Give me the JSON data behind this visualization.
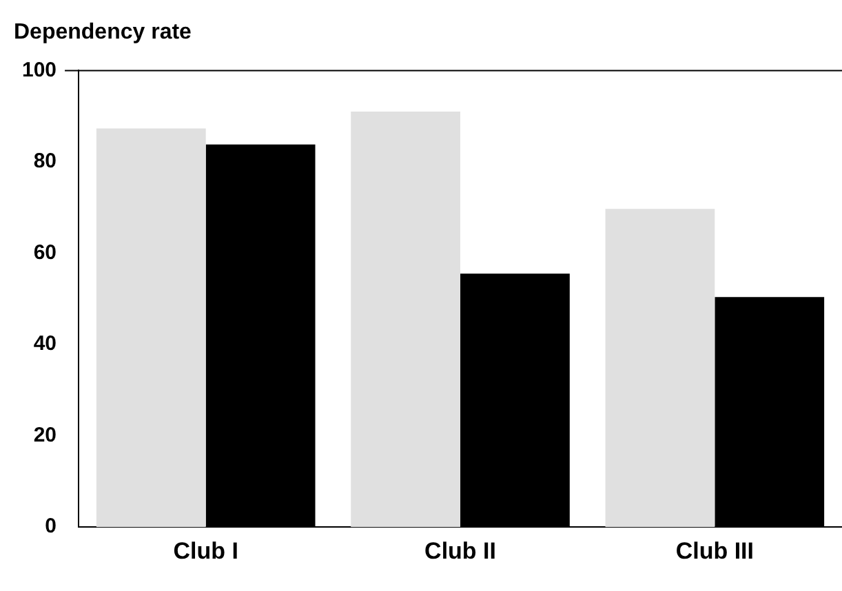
{
  "chart_data": {
    "type": "bar",
    "title": "Dependency rate",
    "categories": [
      "Club I",
      "Club II",
      "Club III"
    ],
    "series": [
      {
        "color": "#e0e0e0",
        "values": [
          87.3,
          91.0,
          69.7
        ]
      },
      {
        "color": "#000000",
        "values": [
          83.8,
          55.5,
          50.4
        ]
      }
    ],
    "ylim": [
      0,
      100
    ],
    "yticks": [
      0,
      20,
      40,
      60,
      80,
      100
    ],
    "grid": false,
    "legend": false
  }
}
